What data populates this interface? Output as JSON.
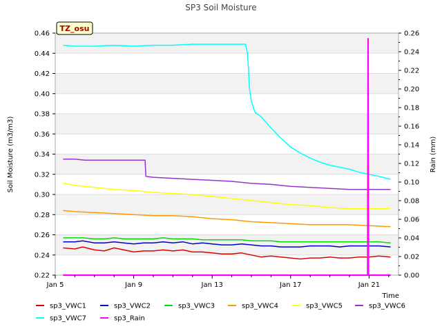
{
  "chart_data": {
    "type": "line",
    "title": "SP3 Soil Moisture",
    "tag": "TZ_osu",
    "xlabel": "Time",
    "ylabel": "Soil Moisture (m3/m3)",
    "y2label": "Rain (mm)",
    "xlim_days": [
      5,
      22.5
    ],
    "ylim": [
      0.22,
      0.46
    ],
    "y2lim": [
      0.0,
      0.26
    ],
    "x_ticks": [
      {
        "day": 5,
        "label": "Jan 5"
      },
      {
        "day": 9,
        "label": "Jan 9"
      },
      {
        "day": 13,
        "label": "Jan 13"
      },
      {
        "day": 17,
        "label": "Jan 17"
      },
      {
        "day": 21,
        "label": "Jan 21"
      }
    ],
    "y_ticks": [
      "0.22",
      "0.24",
      "0.26",
      "0.28",
      "0.30",
      "0.32",
      "0.34",
      "0.36",
      "0.38",
      "0.40",
      "0.42",
      "0.44",
      "0.46"
    ],
    "y2_ticks": [
      "0.00",
      "0.02",
      "0.04",
      "0.06",
      "0.08",
      "0.10",
      "0.12",
      "0.14",
      "0.16",
      "0.18",
      "0.20",
      "0.22",
      "0.24",
      "0.26"
    ],
    "series": [
      {
        "name": "sp3_VWC1",
        "color": "#dd0000",
        "axis": "left",
        "x": [
          5.4,
          6.0,
          6.4,
          7.0,
          7.5,
          8.0,
          8.5,
          9.0,
          9.5,
          10.0,
          10.5,
          11.0,
          11.5,
          12.0,
          12.5,
          13.0,
          13.5,
          14.0,
          14.5,
          15.0,
          15.5,
          16.0,
          16.5,
          17.0,
          17.5,
          18.0,
          18.5,
          19.0,
          19.5,
          20.0,
          20.5,
          21.0,
          21.5,
          22.1
        ],
        "y": [
          0.247,
          0.246,
          0.248,
          0.245,
          0.244,
          0.247,
          0.245,
          0.243,
          0.244,
          0.244,
          0.245,
          0.244,
          0.245,
          0.243,
          0.243,
          0.242,
          0.241,
          0.241,
          0.242,
          0.24,
          0.238,
          0.239,
          0.238,
          0.237,
          0.236,
          0.237,
          0.237,
          0.238,
          0.237,
          0.237,
          0.238,
          0.238,
          0.239,
          0.238
        ]
      },
      {
        "name": "sp3_VWC2",
        "color": "#0000cc",
        "axis": "left",
        "x": [
          5.4,
          6.0,
          6.4,
          7.0,
          7.5,
          8.0,
          8.5,
          9.0,
          9.5,
          10.0,
          10.5,
          11.0,
          11.5,
          12.0,
          12.5,
          13.0,
          13.5,
          14.0,
          14.5,
          15.0,
          15.5,
          16.0,
          16.5,
          17.0,
          17.5,
          18.0,
          18.5,
          19.0,
          19.5,
          20.0,
          20.5,
          21.0,
          21.5,
          22.1
        ],
        "y": [
          0.253,
          0.253,
          0.254,
          0.252,
          0.252,
          0.253,
          0.252,
          0.251,
          0.252,
          0.252,
          0.253,
          0.252,
          0.253,
          0.251,
          0.252,
          0.251,
          0.25,
          0.25,
          0.251,
          0.25,
          0.249,
          0.249,
          0.248,
          0.248,
          0.248,
          0.249,
          0.249,
          0.249,
          0.248,
          0.249,
          0.249,
          0.249,
          0.249,
          0.248
        ]
      },
      {
        "name": "sp3_VWC3",
        "color": "#00dd00",
        "axis": "left",
        "x": [
          5.4,
          6.0,
          6.4,
          7.0,
          7.5,
          8.0,
          8.5,
          9.0,
          9.5,
          10.0,
          10.5,
          11.0,
          11.5,
          12.0,
          12.5,
          13.0,
          13.5,
          14.0,
          14.5,
          15.0,
          15.5,
          16.0,
          16.5,
          17.0,
          17.5,
          18.0,
          18.5,
          19.0,
          19.5,
          20.0,
          20.5,
          21.0,
          21.5,
          22.1
        ],
        "y": [
          0.257,
          0.257,
          0.257,
          0.256,
          0.256,
          0.257,
          0.256,
          0.256,
          0.256,
          0.256,
          0.257,
          0.256,
          0.256,
          0.256,
          0.255,
          0.255,
          0.255,
          0.255,
          0.255,
          0.254,
          0.254,
          0.254,
          0.253,
          0.253,
          0.253,
          0.253,
          0.253,
          0.253,
          0.253,
          0.253,
          0.253,
          0.253,
          0.253,
          0.252
        ]
      },
      {
        "name": "sp3_VWC4",
        "color": "#ff9900",
        "axis": "left",
        "x": [
          5.4,
          6.0,
          7.0,
          8.0,
          9.0,
          10.0,
          11.0,
          12.0,
          13.0,
          14.0,
          15.0,
          16.0,
          17.0,
          18.0,
          19.0,
          20.0,
          21.0,
          22.1
        ],
        "y": [
          0.284,
          0.283,
          0.282,
          0.281,
          0.28,
          0.279,
          0.279,
          0.278,
          0.276,
          0.275,
          0.273,
          0.272,
          0.271,
          0.27,
          0.27,
          0.27,
          0.269,
          0.268
        ]
      },
      {
        "name": "sp3_VWC5",
        "color": "#ffff00",
        "axis": "left",
        "x": [
          5.4,
          6.0,
          7.0,
          8.0,
          9.0,
          10.0,
          11.0,
          12.0,
          13.0,
          14.0,
          15.0,
          16.0,
          17.0,
          18.0,
          19.0,
          20.0,
          21.0,
          22.1
        ],
        "y": [
          0.311,
          0.309,
          0.307,
          0.305,
          0.304,
          0.302,
          0.301,
          0.3,
          0.298,
          0.296,
          0.294,
          0.292,
          0.29,
          0.289,
          0.287,
          0.286,
          0.286,
          0.286
        ]
      },
      {
        "name": "sp3_VWC6",
        "color": "#9933cc",
        "axis": "left",
        "x": [
          5.4,
          6.0,
          6.5,
          7.5,
          8.5,
          9.5,
          9.58,
          9.62,
          10.0,
          11.0,
          12.0,
          13.0,
          14.0,
          15.0,
          16.0,
          17.0,
          18.0,
          19.0,
          20.0,
          21.0,
          22.1
        ],
        "y": [
          0.335,
          0.335,
          0.334,
          0.334,
          0.334,
          0.334,
          0.334,
          0.318,
          0.317,
          0.316,
          0.315,
          0.314,
          0.313,
          0.311,
          0.31,
          0.308,
          0.307,
          0.306,
          0.305,
          0.305,
          0.305
        ]
      },
      {
        "name": "sp3_VWC7",
        "color": "#00ffff",
        "axis": "left",
        "x": [
          5.4,
          6.0,
          7.0,
          8.0,
          9.0,
          10.0,
          11.0,
          12.0,
          13.0,
          14.0,
          14.7,
          14.8,
          14.85,
          14.9,
          15.0,
          15.1,
          15.2,
          15.5,
          16.0,
          16.5,
          17.0,
          17.5,
          18.0,
          18.5,
          19.0,
          19.5,
          20.0,
          20.5,
          21.0,
          21.5,
          22.1
        ],
        "y": [
          0.448,
          0.447,
          0.447,
          0.448,
          0.447,
          0.448,
          0.448,
          0.449,
          0.449,
          0.449,
          0.449,
          0.44,
          0.425,
          0.405,
          0.392,
          0.386,
          0.381,
          0.377,
          0.366,
          0.356,
          0.347,
          0.341,
          0.336,
          0.332,
          0.329,
          0.327,
          0.325,
          0.322,
          0.32,
          0.318,
          0.315
        ]
      },
      {
        "name": "sp3_Rain",
        "color": "#ff00ff",
        "axis": "right",
        "x": [
          5.4,
          20.93,
          20.95,
          20.97,
          22.1
        ],
        "y": [
          0.0,
          0.0,
          0.254,
          0.0,
          0.0
        ]
      }
    ],
    "legend_placement": "bottom"
  }
}
